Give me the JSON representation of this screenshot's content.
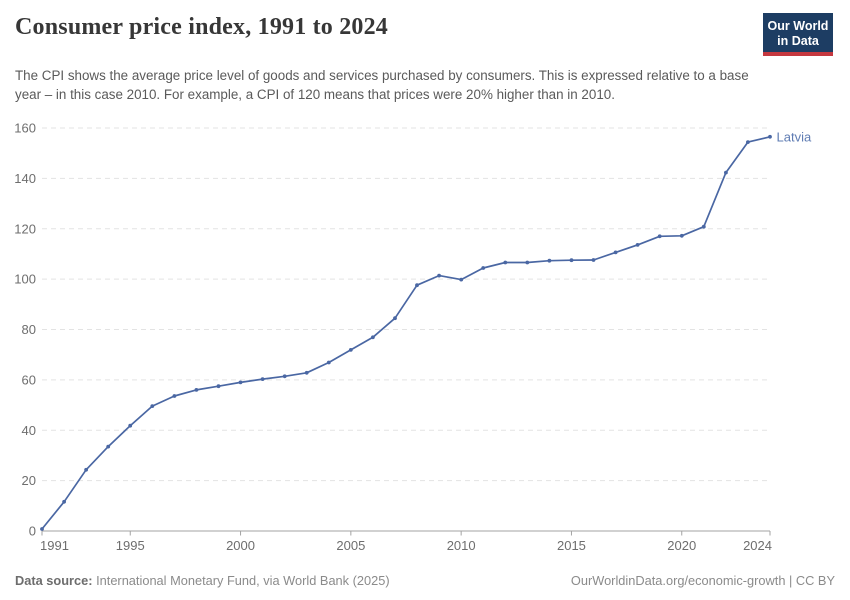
{
  "header": {
    "title": "Consumer price index, 1991 to 2024",
    "subtitle": "The CPI shows the average price level of goods and services purchased by consumers. This is expressed relative to a base year – in this case 2010. For example, a CPI of 120 means that prices were 20% higher than in 2010.",
    "logo": {
      "line1": "Our World",
      "line2": "in Data",
      "bg_color": "#1d3d63",
      "accent_color": "#c5383f"
    }
  },
  "chart_data": {
    "type": "line",
    "title": "Consumer price index, 1991 to 2024",
    "x": [
      1991,
      1992,
      1993,
      1994,
      1995,
      1996,
      1997,
      1998,
      1999,
      2000,
      2001,
      2002,
      2003,
      2004,
      2005,
      2006,
      2007,
      2008,
      2009,
      2010,
      2011,
      2012,
      2013,
      2014,
      2015,
      2016,
      2017,
      2018,
      2019,
      2020,
      2021,
      2022,
      2023,
      2024
    ],
    "series": [
      {
        "name": "Latvia",
        "color": "#4a67a3",
        "label_color": "#5f7cb3",
        "values": [
          0.8,
          11.6,
          24.3,
          33.5,
          41.8,
          49.6,
          53.6,
          56.0,
          57.5,
          59.0,
          60.3,
          61.4,
          62.8,
          66.9,
          71.9,
          76.9,
          84.5,
          97.6,
          101.4,
          99.8,
          104.4,
          106.6,
          106.6,
          107.3,
          107.5,
          107.6,
          110.6,
          113.6,
          117.0,
          117.2,
          120.8,
          142.3,
          154.4,
          156.5
        ]
      }
    ],
    "xlabel": "",
    "ylabel": "",
    "xlim": [
      1991,
      2024
    ],
    "ylim": [
      0,
      160
    ],
    "ytick_step": 20,
    "xticks": [
      1991,
      1995,
      2000,
      2005,
      2010,
      2015,
      2020,
      2024
    ],
    "grid": "horizontal-dashed",
    "legend_position": "end-of-line-label",
    "styles": {
      "grid_color": "#e3e3e3",
      "axis_color": "#a3a3a3",
      "tick_label_color": "#6e6e6e"
    }
  },
  "footer": {
    "source_label": "Data source:",
    "source_text": " International Monetary Fund, via World Bank (2025)",
    "link_text": "OurWorldinData.org/economic-growth | CC BY"
  }
}
